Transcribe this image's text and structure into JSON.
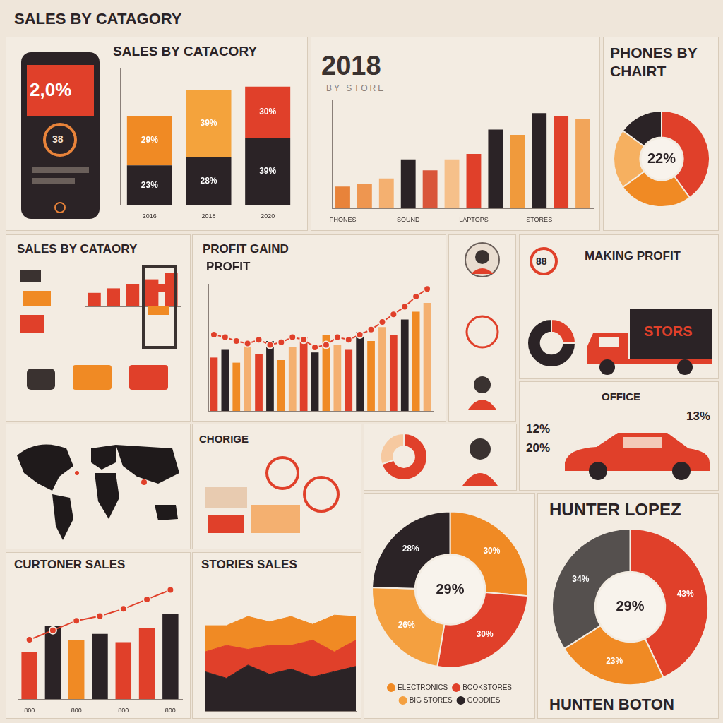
{
  "header": {
    "title": "SALES BY CATAGORY"
  },
  "phone": {
    "value": "2,0%",
    "badge": "38"
  },
  "making_profit": {
    "title": "MAKING PROFIT",
    "badge": "88",
    "truck": "STORS"
  },
  "office": {
    "title": "OFFICE",
    "labels": [
      "12%",
      "20%",
      "13%"
    ]
  },
  "choice": {
    "title": "CHORIGE"
  },
  "footer": "HUNTEN BOTON",
  "chart_data": [
    {
      "type": "bar",
      "title": "SALES BY CATACORY",
      "categories": [
        "2016",
        "2018",
        "2020"
      ],
      "stacked": true,
      "data_labels": true,
      "tick_labels": "x",
      "grid": false,
      "ylim": [
        0,
        80
      ],
      "series": [
        {
          "values": [
            23,
            28,
            39
          ],
          "value_labels": [
            "23%",
            "28%",
            "39%"
          ],
          "color": "#2b2326"
        },
        {
          "values": [
            29,
            39,
            30
          ],
          "value_labels": [
            "29%",
            "39%",
            "30%"
          ],
          "colors": [
            "#f08a24",
            "#f4a33c",
            "#e0402a"
          ]
        }
      ]
    },
    {
      "type": "bar",
      "title": "2018",
      "subtitle": "BY STORE",
      "categories": [
        "PHONES",
        null,
        null,
        "SOUND",
        null,
        null,
        "LAPTOPS",
        null,
        null,
        "STORES",
        null,
        null
      ],
      "values": [
        16,
        18,
        22,
        36,
        28,
        36,
        40,
        58,
        54,
        70,
        68,
        66
      ],
      "colors": [
        "#e8833a",
        "#ee9650",
        "#f4b070",
        "#2b2326",
        "#d9553a",
        "#f6c08a",
        "#e0402a",
        "#2b2326",
        "#f09a3c",
        "#2b2326",
        "#e0402a",
        "#f2a55a"
      ],
      "ylim": [
        0,
        80
      ],
      "tick_labels": "x",
      "grid": false
    },
    {
      "type": "doughnut",
      "title": "PHONES BY CHAIRT",
      "annotations": [
        "22%"
      ],
      "values": [
        40,
        25,
        20,
        15
      ],
      "colors": [
        "#e0402a",
        "#f08a24",
        "#f6b060",
        "#2b2326"
      ]
    },
    {
      "type": "bar",
      "title": "SALES BY CATAORY",
      "categories": [
        null,
        null,
        null,
        null,
        null
      ],
      "values": [
        12,
        16,
        20,
        24,
        30
      ],
      "color": "#e0402a",
      "ylim": [
        0,
        35
      ],
      "tick_labels": false,
      "grid": false
    },
    {
      "type": "bar",
      "title": "PROFIT GAIND",
      "subtitle": "PROFIT",
      "categories": [
        null,
        null,
        null,
        null,
        null,
        null,
        null,
        null,
        null,
        null,
        null,
        null,
        null,
        null,
        null,
        null,
        null,
        null,
        null,
        null
      ],
      "ylim": [
        0,
        100
      ],
      "tick_labels": false,
      "grid": false,
      "series": [
        {
          "type": "bar",
          "values": [
            42,
            48,
            38,
            52,
            45,
            55,
            40,
            50,
            58,
            46,
            60,
            52,
            48,
            62,
            55,
            66,
            60,
            72,
            78,
            85
          ],
          "colors": [
            "#e0402a",
            "#2b2326",
            "#f08a24",
            "#f4b070",
            "#e0402a",
            "#2b2326",
            "#f08a24",
            "#f4b070",
            "#e0402a",
            "#2b2326",
            "#f08a24",
            "#f4b070",
            "#e0402a",
            "#2b2326",
            "#f08a24",
            "#f4b070",
            "#e0402a",
            "#2b2326",
            "#f08a24",
            "#f4b070"
          ]
        },
        {
          "type": "line",
          "values": [
            60,
            58,
            55,
            53,
            56,
            52,
            54,
            58,
            56,
            50,
            52,
            58,
            56,
            60,
            64,
            70,
            76,
            82,
            90,
            96
          ],
          "color": "#e0402a",
          "marker": "circle"
        }
      ]
    },
    {
      "type": "doughnut",
      "values": [
        25,
        75
      ],
      "colors": [
        "#e0402a",
        "#2b2326"
      ]
    },
    {
      "type": "doughnut",
      "values": [
        70,
        30
      ],
      "colors": [
        "#e0402a",
        "#f6c9a0"
      ]
    },
    {
      "type": "bar",
      "title": "CURTONER SALES",
      "categories": [
        "800",
        null,
        "800",
        null,
        "800",
        null,
        "800"
      ],
      "ylim": [
        0,
        100
      ],
      "tick_labels": "x",
      "grid": false,
      "series": [
        {
          "type": "bar",
          "values": [
            40,
            62,
            50,
            55,
            48,
            60,
            72
          ],
          "colors": [
            "#e0402a",
            "#2b2326",
            "#f08a24",
            "#2b2326",
            "#e0402a",
            "#e0402a",
            "#2b2326"
          ]
        },
        {
          "type": "line",
          "values": [
            50,
            58,
            66,
            70,
            76,
            84,
            92
          ],
          "color": "#e0402a",
          "marker": "circle"
        }
      ]
    },
    {
      "type": "area",
      "title": "STORIES SALES",
      "categories": [
        null,
        null,
        null,
        null,
        null,
        null,
        null,
        null
      ],
      "stacked": true,
      "ylim": [
        0,
        100
      ],
      "tick_labels": false,
      "grid": false,
      "series": [
        {
          "values": [
            30,
            25,
            35,
            28,
            32,
            26,
            30,
            34
          ],
          "color": "#2b2326"
        },
        {
          "values": [
            15,
            25,
            12,
            22,
            18,
            28,
            15,
            20
          ],
          "color": "#e0402a"
        },
        {
          "values": [
            20,
            15,
            25,
            18,
            22,
            12,
            28,
            18
          ],
          "color": "#f08a24"
        }
      ]
    },
    {
      "type": "doughnut",
      "categories": [
        "ELECTRONICS",
        "BOOKSTORES",
        "BIG STORES",
        "GOODIES"
      ],
      "values": [
        30,
        30,
        26,
        28
      ],
      "value_labels": [
        "30%",
        "30%",
        "26%",
        "28%"
      ],
      "data_labels": true,
      "colors": [
        "#f08a24",
        "#e0402a",
        "#f4a040",
        "#2b2326"
      ],
      "annotations": [
        "29%"
      ],
      "legend": "bottom"
    },
    {
      "type": "doughnut",
      "title": "HUNTER LOPEZ",
      "values": [
        43,
        23,
        34
      ],
      "value_labels": [
        "43%",
        "23%",
        "34%"
      ],
      "data_labels": true,
      "colors": [
        "#e0402a",
        "#f08a24",
        "#55504e"
      ],
      "annotations": [
        "29%"
      ]
    }
  ]
}
